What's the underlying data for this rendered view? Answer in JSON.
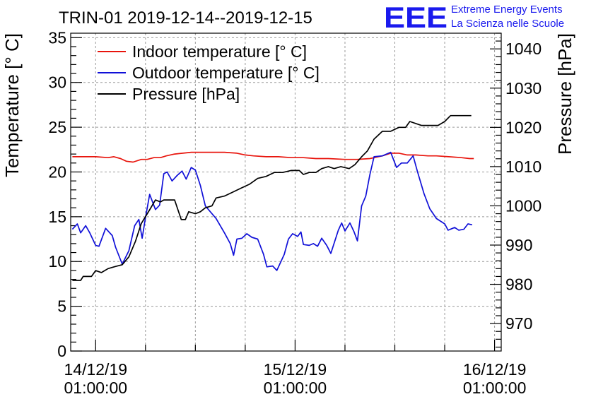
{
  "title": "TRIN-01 2019-12-14--2019-12-15",
  "logo": {
    "mark": "EEE",
    "line1": "Extreme Energy Events",
    "line2": "La Scienza nelle Scuole",
    "color": "#1a1aee"
  },
  "chart_data": {
    "type": "line",
    "y_left": {
      "label": "Temperature [° C]",
      "range": [
        0,
        35.5
      ],
      "ticks": [
        0,
        5,
        10,
        15,
        20,
        25,
        30,
        35
      ]
    },
    "y_right": {
      "label": "Pressure [hPa]",
      "range": [
        963,
        1044
      ],
      "ticks": [
        970,
        980,
        990,
        1000,
        1010,
        1020,
        1030,
        1040
      ]
    },
    "x_axis": {
      "unit": "hours since 14/12/19 01:00:00",
      "range": [
        -3.0,
        48.8
      ],
      "major_ticks": [
        {
          "hour": 0,
          "date": "14/12/19",
          "time": "01:00:00"
        },
        {
          "hour": 24,
          "date": "15/12/19",
          "time": "01:00:00"
        },
        {
          "hour": 48,
          "date": "16/12/19",
          "time": "01:00:00"
        }
      ],
      "minor_step_hours": 6
    },
    "grid": true,
    "legend_position": "top-left",
    "series": [
      {
        "name": "Indoor temperature [° C]",
        "axis": "left",
        "color": "#e8140c",
        "points": [
          [
            -2.8,
            21.7
          ],
          [
            0,
            21.7
          ],
          [
            1.5,
            21.6
          ],
          [
            2.2,
            21.7
          ],
          [
            3,
            21.5
          ],
          [
            3.7,
            21.2
          ],
          [
            4.5,
            21.1
          ],
          [
            5.5,
            21.4
          ],
          [
            6.2,
            21.4
          ],
          [
            7,
            21.6
          ],
          [
            7.8,
            21.6
          ],
          [
            8.5,
            21.8
          ],
          [
            9.5,
            22.0
          ],
          [
            10.5,
            22.1
          ],
          [
            11.5,
            22.2
          ],
          [
            12.5,
            22.2
          ],
          [
            14,
            22.2
          ],
          [
            15.5,
            22.2
          ],
          [
            17,
            22.1
          ],
          [
            18,
            21.9
          ],
          [
            19,
            21.8
          ],
          [
            20.5,
            21.7
          ],
          [
            22,
            21.7
          ],
          [
            23.5,
            21.6
          ],
          [
            25,
            21.6
          ],
          [
            26.5,
            21.5
          ],
          [
            28,
            21.5
          ],
          [
            30,
            21.4
          ],
          [
            31.5,
            21.4
          ],
          [
            33,
            21.5
          ],
          [
            34.5,
            21.8
          ],
          [
            35.5,
            22.1
          ],
          [
            36.5,
            22.1
          ],
          [
            37.5,
            21.9
          ],
          [
            38.5,
            21.9
          ],
          [
            40,
            21.8
          ],
          [
            41,
            21.8
          ],
          [
            42.5,
            21.7
          ],
          [
            44,
            21.6
          ],
          [
            45,
            21.5
          ],
          [
            45.5,
            21.5
          ]
        ]
      },
      {
        "name": "Outdoor temperature [° C]",
        "axis": "left",
        "color": "#1010d8",
        "points": [
          [
            -2.8,
            13.6
          ],
          [
            -2.2,
            14.2
          ],
          [
            -1.8,
            13.2
          ],
          [
            -1.2,
            14.0
          ],
          [
            -0.7,
            13.2
          ],
          [
            0,
            11.8
          ],
          [
            0.4,
            11.7
          ],
          [
            1.2,
            13.7
          ],
          [
            2,
            12.9
          ],
          [
            2.4,
            11.6
          ],
          [
            3.2,
            9.7
          ],
          [
            4,
            11.2
          ],
          [
            4.7,
            14.0
          ],
          [
            5.2,
            14.7
          ],
          [
            5.6,
            12.6
          ],
          [
            6.0,
            14.9
          ],
          [
            6.5,
            17.5
          ],
          [
            7.2,
            15.8
          ],
          [
            7.7,
            16.3
          ],
          [
            8.2,
            19.8
          ],
          [
            8.6,
            20.0
          ],
          [
            9.2,
            19.0
          ],
          [
            9.8,
            19.6
          ],
          [
            10.4,
            20.1
          ],
          [
            10.9,
            19.2
          ],
          [
            11.5,
            20.5
          ],
          [
            12,
            20.2
          ],
          [
            12.6,
            18.5
          ],
          [
            13.2,
            16.2
          ],
          [
            14.5,
            14.8
          ],
          [
            15.5,
            13.2
          ],
          [
            16.2,
            12.0
          ],
          [
            16.6,
            10.7
          ],
          [
            17,
            12.5
          ],
          [
            17.6,
            12.6
          ],
          [
            18.2,
            13.1
          ],
          [
            18.8,
            12.7
          ],
          [
            19.5,
            12.5
          ],
          [
            20.2,
            10.8
          ],
          [
            20.6,
            9.4
          ],
          [
            21.3,
            9.5
          ],
          [
            21.8,
            9.0
          ],
          [
            22.7,
            10.8
          ],
          [
            23.2,
            12.5
          ],
          [
            23.7,
            13.1
          ],
          [
            24.3,
            12.8
          ],
          [
            24.7,
            13.3
          ],
          [
            25,
            11.9
          ],
          [
            25.7,
            11.8
          ],
          [
            26.2,
            12.0
          ],
          [
            26.7,
            11.7
          ],
          [
            27.2,
            12.6
          ],
          [
            27.8,
            11.8
          ],
          [
            28.3,
            10.9
          ],
          [
            29.2,
            13.5
          ],
          [
            29.6,
            14.3
          ],
          [
            30,
            13.4
          ],
          [
            30.6,
            14.3
          ],
          [
            31.1,
            13.3
          ],
          [
            31.5,
            12.3
          ],
          [
            32,
            16.2
          ],
          [
            32.5,
            17.3
          ],
          [
            33,
            19.7
          ],
          [
            33.5,
            21.7
          ],
          [
            34.5,
            21.8
          ],
          [
            35.5,
            22.2
          ],
          [
            36.2,
            20.5
          ],
          [
            36.8,
            21.0
          ],
          [
            37.5,
            21.0
          ],
          [
            38.2,
            21.8
          ],
          [
            38.7,
            20.1
          ],
          [
            39.5,
            17.6
          ],
          [
            40.2,
            15.9
          ],
          [
            41,
            14.8
          ],
          [
            42,
            14.2
          ],
          [
            42.4,
            13.5
          ],
          [
            43.2,
            13.8
          ],
          [
            43.7,
            13.5
          ],
          [
            44.3,
            13.6
          ],
          [
            44.8,
            14.2
          ],
          [
            45.3,
            14.1
          ]
        ]
      },
      {
        "name": "Pressure [hPa]",
        "axis": "right",
        "color": "#000000",
        "points": [
          [
            -2.8,
            981.0
          ],
          [
            -1.8,
            981.0
          ],
          [
            -1.5,
            982.0
          ],
          [
            -0.5,
            982.0
          ],
          [
            0,
            983.5
          ],
          [
            0.7,
            983.0
          ],
          [
            1.5,
            984.0
          ],
          [
            2.3,
            984.5
          ],
          [
            3.2,
            985.0
          ],
          [
            4.0,
            987.0
          ],
          [
            4.8,
            991.0
          ],
          [
            5.5,
            995.5
          ],
          [
            6.5,
            999.0
          ],
          [
            7.2,
            1001.5
          ],
          [
            7.8,
            1001.0
          ],
          [
            8.2,
            1001.5
          ],
          [
            9.5,
            1001.5
          ],
          [
            10.3,
            996.5
          ],
          [
            10.8,
            996.5
          ],
          [
            11.2,
            998.5
          ],
          [
            12,
            998.0
          ],
          [
            12.6,
            998.5
          ],
          [
            13.2,
            999.5
          ],
          [
            14,
            1000.0
          ],
          [
            14.5,
            1002.0
          ],
          [
            15.5,
            1002.5
          ],
          [
            16.5,
            1003.5
          ],
          [
            17.5,
            1004.5
          ],
          [
            18.5,
            1005.5
          ],
          [
            19.5,
            1007.0
          ],
          [
            20.5,
            1007.5
          ],
          [
            21.5,
            1008.5
          ],
          [
            22.5,
            1008.5
          ],
          [
            23.5,
            1009.0
          ],
          [
            24.5,
            1009.0
          ],
          [
            25,
            1008.0
          ],
          [
            25.7,
            1008.5
          ],
          [
            26.5,
            1008.5
          ],
          [
            27.2,
            1009.5
          ],
          [
            28,
            1010.0
          ],
          [
            28.7,
            1009.5
          ],
          [
            29.5,
            1010.0
          ],
          [
            30.5,
            1009.5
          ],
          [
            31.2,
            1010.5
          ],
          [
            32,
            1012.5
          ],
          [
            32.7,
            1014.0
          ],
          [
            33.5,
            1017.0
          ],
          [
            34.5,
            1019.0
          ],
          [
            35.5,
            1019.0
          ],
          [
            36.5,
            1020.0
          ],
          [
            37.3,
            1020.0
          ],
          [
            37.8,
            1021.5
          ],
          [
            38.5,
            1021.0
          ],
          [
            39.2,
            1020.5
          ],
          [
            40.2,
            1020.5
          ],
          [
            41.2,
            1020.5
          ],
          [
            42,
            1021.5
          ],
          [
            42.7,
            1023.0
          ],
          [
            43.5,
            1023.0
          ],
          [
            44.5,
            1023.0
          ],
          [
            45.2,
            1023.0
          ]
        ]
      }
    ]
  }
}
